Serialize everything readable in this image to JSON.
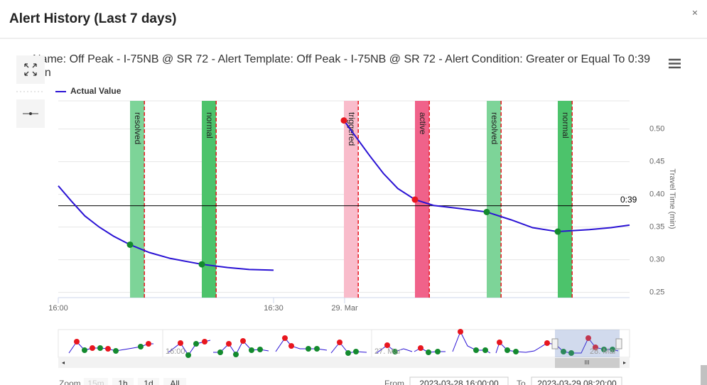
{
  "dialog": {
    "title": "Alert History (Last 7 days)",
    "close": "×"
  },
  "chart_data": {
    "type": "line",
    "subtitle": "Name: Off Peak - I-75NB @ SR 72 - Alert Template: Off Peak - I-75NB @ SR 72 - Alert Condition: Greater or Equal To 0:39 min",
    "x": [
      0,
      1.8,
      3.7,
      5.7,
      7.7,
      10.0,
      12.7,
      15.6,
      20.0,
      23.6,
      26.6,
      30.0,
      35.0,
      39.8,
      41.4,
      43.4,
      45.3,
      47.3,
      49.7,
      52.3,
      56.2,
      59.7,
      63.1,
      66.1,
      69.6,
      74.0,
      77.0,
      79.6
    ],
    "series": [
      {
        "name": "Actual Value",
        "color": "#2a12d4",
        "values": [
          0.413,
          0.39,
          0.367,
          0.35,
          0.336,
          0.323,
          0.311,
          0.302,
          0.293,
          0.288,
          0.285,
          0.284,
          null,
          0.513,
          0.489,
          0.459,
          0.432,
          0.409,
          0.392,
          0.383,
          0.378,
          0.373,
          0.361,
          0.349,
          0.343,
          0.346,
          0.349,
          0.353
        ]
      }
    ],
    "xlim": [
      0,
      79.6
    ],
    "xticks": [
      {
        "value": 0,
        "label": "16:00"
      },
      {
        "value": 30,
        "label": "16:30"
      },
      {
        "value": 39.9,
        "label": "29. Mar"
      }
    ],
    "ylim": [
      0.242,
      0.543
    ],
    "yticks": [
      0.25,
      {
        "value": 0.3,
        "label": "0.30"
      },
      0.35,
      {
        "value": 0.4,
        "label": "0.40"
      },
      0.45,
      {
        "value": 0.5,
        "label": "0.50"
      }
    ],
    "y_axis_title": "Travel Time (min)",
    "grid": true,
    "legend": "top-left",
    "threshold": {
      "value": 0.3826,
      "label": "0:39"
    },
    "events": [
      {
        "label": "resolved",
        "x_start": 10.0,
        "x_end": 12.0,
        "value": 0.323,
        "color": "#7dd498",
        "marker": "#138a2e"
      },
      {
        "label": "normal",
        "x_start": 20.0,
        "x_end": 22.0,
        "value": 0.293,
        "color": "#4cc36b",
        "marker": "#138a2e"
      },
      {
        "label": "triggered",
        "x_start": 39.8,
        "x_end": 41.8,
        "value": 0.513,
        "color": "#f9bccb",
        "marker": "#e8161e"
      },
      {
        "label": "active",
        "x_start": 49.7,
        "x_end": 51.7,
        "value": 0.392,
        "color": "#f0628a",
        "marker": "#e8161e"
      },
      {
        "label": "resolved",
        "x_start": 59.7,
        "x_end": 61.7,
        "value": 0.373,
        "color": "#7dd498",
        "marker": "#138a2e"
      },
      {
        "label": "normal",
        "x_start": 69.6,
        "x_end": 71.6,
        "value": 0.343,
        "color": "#4cc36b",
        "marker": "#138a2e"
      }
    ]
  },
  "navigator": {
    "labels": [
      "16:00",
      "27. Mar",
      "28. Mar"
    ]
  },
  "controls": {
    "zoom_label": "Zoom",
    "zoom_buttons": [
      "15m",
      "1h",
      "1d",
      "All"
    ],
    "from_label": "From",
    "from": "2023-03-28 16:00:00",
    "to_label": "To",
    "to": "2023-03-29 08:20:00"
  }
}
